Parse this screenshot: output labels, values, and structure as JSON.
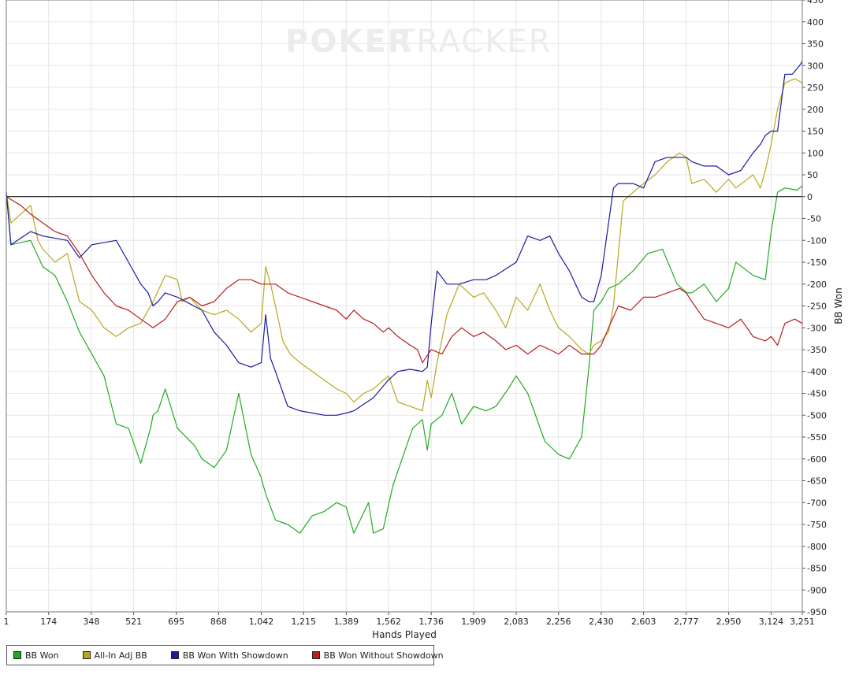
{
  "watermark": {
    "left": "POKER",
    "right": "TRACKER"
  },
  "chart_data": {
    "type": "line",
    "xlabel": "Hands Played",
    "ylabel": "BB Won",
    "xlim": [
      1,
      3251
    ],
    "ylim": [
      -950,
      450
    ],
    "x_ticks": [
      "1",
      "174",
      "348",
      "521",
      "695",
      "868",
      "1,042",
      "1,215",
      "1,389",
      "1,562",
      "1,736",
      "1,909",
      "2,083",
      "2,256",
      "2,430",
      "2,603",
      "2,777",
      "2,950",
      "3,124",
      "3,251"
    ],
    "y_ticks": [
      450,
      400,
      350,
      300,
      250,
      200,
      150,
      100,
      50,
      0,
      -50,
      -100,
      -150,
      -200,
      -250,
      -300,
      -350,
      -400,
      -450,
      -500,
      -550,
      -600,
      -650,
      -700,
      -750,
      -800,
      -850,
      -900,
      -950
    ],
    "grid": true,
    "legend_position": "bottom-left",
    "series": [
      {
        "name": "BB Won",
        "color": "#22aa22",
        "x": [
          1,
          20,
          100,
          150,
          200,
          250,
          300,
          350,
          400,
          450,
          500,
          550,
          590,
          600,
          620,
          650,
          700,
          770,
          800,
          850,
          900,
          950,
          1000,
          1040,
          1060,
          1100,
          1150,
          1200,
          1250,
          1300,
          1350,
          1389,
          1420,
          1480,
          1500,
          1540,
          1580,
          1660,
          1700,
          1720,
          1736,
          1780,
          1820,
          1860,
          1909,
          1960,
          2000,
          2050,
          2083,
          2130,
          2200,
          2256,
          2300,
          2350,
          2380,
          2400,
          2430,
          2460,
          2500,
          2560,
          2620,
          2680,
          2740,
          2780,
          2800,
          2850,
          2900,
          2950,
          2980,
          3050,
          3100,
          3124,
          3150,
          3180,
          3230,
          3251
        ],
        "values": [
          10,
          -110,
          -100,
          -160,
          -180,
          -240,
          -310,
          -360,
          -410,
          -520,
          -530,
          -610,
          -530,
          -500,
          -490,
          -440,
          -530,
          -570,
          -600,
          -620,
          -580,
          -450,
          -590,
          -640,
          -680,
          -740,
          -750,
          -770,
          -730,
          -720,
          -700,
          -710,
          -770,
          -700,
          -770,
          -760,
          -660,
          -530,
          -510,
          -580,
          -520,
          -500,
          -450,
          -520,
          -480,
          -490,
          -480,
          -440,
          -410,
          -450,
          -560,
          -590,
          -600,
          -550,
          -390,
          -260,
          -240,
          -210,
          -200,
          -170,
          -130,
          -120,
          -200,
          -220,
          -220,
          -200,
          -240,
          -210,
          -150,
          -180,
          -190,
          -80,
          10,
          20,
          15,
          25
        ]
      },
      {
        "name": "All-In Adj BB",
        "color": "#b8a81e",
        "x": [
          1,
          20,
          60,
          100,
          130,
          150,
          200,
          250,
          300,
          350,
          400,
          450,
          500,
          550,
          600,
          650,
          700,
          720,
          750,
          800,
          850,
          900,
          950,
          1000,
          1042,
          1060,
          1080,
          1100,
          1130,
          1160,
          1200,
          1250,
          1300,
          1350,
          1389,
          1420,
          1460,
          1500,
          1540,
          1562,
          1600,
          1650,
          1700,
          1720,
          1736,
          1760,
          1800,
          1850,
          1909,
          1950,
          2000,
          2040,
          2083,
          2130,
          2180,
          2220,
          2256,
          2300,
          2350,
          2380,
          2400,
          2430,
          2460,
          2480,
          2520,
          2560,
          2603,
          2650,
          2700,
          2750,
          2777,
          2800,
          2850,
          2900,
          2950,
          2980,
          3050,
          3080,
          3100,
          3124,
          3150,
          3180,
          3220,
          3251
        ],
        "values": [
          10,
          -60,
          -40,
          -20,
          -100,
          -120,
          -150,
          -130,
          -240,
          -260,
          -300,
          -320,
          -300,
          -290,
          -240,
          -180,
          -190,
          -240,
          -230,
          -260,
          -270,
          -260,
          -280,
          -310,
          -290,
          -160,
          -200,
          -250,
          -330,
          -360,
          -380,
          -400,
          -420,
          -440,
          -450,
          -470,
          -450,
          -440,
          -420,
          -410,
          -470,
          -480,
          -490,
          -420,
          -460,
          -380,
          -270,
          -200,
          -230,
          -220,
          -260,
          -300,
          -230,
          -260,
          -200,
          -260,
          -300,
          -320,
          -350,
          -360,
          -340,
          -330,
          -310,
          -250,
          -10,
          10,
          30,
          50,
          80,
          100,
          90,
          30,
          40,
          10,
          40,
          20,
          50,
          20,
          60,
          120,
          200,
          260,
          270,
          260
        ]
      },
      {
        "name": "BB Won With Showdown",
        "color": "#1a1aa0",
        "x": [
          1,
          20,
          100,
          150,
          250,
          300,
          350,
          450,
          500,
          550,
          580,
          600,
          620,
          650,
          700,
          800,
          850,
          900,
          950,
          1000,
          1042,
          1060,
          1080,
          1100,
          1150,
          1200,
          1250,
          1300,
          1350,
          1389,
          1420,
          1500,
          1560,
          1600,
          1650,
          1700,
          1720,
          1736,
          1760,
          1800,
          1850,
          1909,
          1960,
          2000,
          2083,
          2130,
          2180,
          2220,
          2256,
          2300,
          2350,
          2380,
          2400,
          2430,
          2480,
          2500,
          2530,
          2560,
          2603,
          2650,
          2700,
          2777,
          2800,
          2850,
          2900,
          2950,
          3000,
          3050,
          3080,
          3100,
          3124,
          3150,
          3180,
          3210,
          3240,
          3251
        ],
        "values": [
          10,
          -110,
          -80,
          -90,
          -100,
          -140,
          -110,
          -100,
          -150,
          -200,
          -220,
          -250,
          -240,
          -220,
          -230,
          -260,
          -310,
          -340,
          -380,
          -390,
          -380,
          -270,
          -370,
          -400,
          -480,
          -490,
          -495,
          -500,
          -500,
          -495,
          -490,
          -460,
          -420,
          -400,
          -395,
          -400,
          -390,
          -290,
          -170,
          -200,
          -200,
          -190,
          -190,
          -180,
          -150,
          -90,
          -100,
          -90,
          -130,
          -170,
          -230,
          -240,
          -240,
          -180,
          20,
          30,
          30,
          30,
          20,
          80,
          90,
          90,
          80,
          70,
          70,
          50,
          60,
          100,
          120,
          140,
          150,
          150,
          280,
          280,
          300,
          310
        ]
      },
      {
        "name": "BB Won Without Showdown",
        "color": "#b81e1e",
        "x": [
          1,
          30,
          60,
          100,
          150,
          200,
          250,
          300,
          350,
          400,
          450,
          500,
          550,
          600,
          650,
          700,
          750,
          800,
          850,
          900,
          950,
          1000,
          1042,
          1100,
          1150,
          1200,
          1250,
          1300,
          1350,
          1389,
          1420,
          1460,
          1500,
          1540,
          1562,
          1600,
          1650,
          1680,
          1700,
          1736,
          1780,
          1820,
          1860,
          1909,
          1950,
          2000,
          2040,
          2083,
          2130,
          2180,
          2220,
          2256,
          2300,
          2350,
          2400,
          2430,
          2460,
          2500,
          2550,
          2603,
          2650,
          2700,
          2750,
          2777,
          2800,
          2850,
          2900,
          2950,
          3000,
          3050,
          3100,
          3124,
          3150,
          3180,
          3220,
          3251
        ],
        "values": [
          0,
          -10,
          -20,
          -40,
          -60,
          -80,
          -90,
          -130,
          -180,
          -220,
          -250,
          -260,
          -280,
          -300,
          -280,
          -240,
          -230,
          -250,
          -240,
          -210,
          -190,
          -190,
          -200,
          -200,
          -220,
          -230,
          -240,
          -250,
          -260,
          -280,
          -260,
          -280,
          -290,
          -310,
          -300,
          -320,
          -340,
          -350,
          -380,
          -350,
          -360,
          -320,
          -300,
          -320,
          -310,
          -330,
          -350,
          -340,
          -360,
          -340,
          -350,
          -360,
          -340,
          -360,
          -360,
          -340,
          -300,
          -250,
          -260,
          -230,
          -230,
          -220,
          -210,
          -220,
          -240,
          -280,
          -290,
          -300,
          -280,
          -320,
          -330,
          -320,
          -340,
          -290,
          -280,
          -290
        ]
      }
    ]
  }
}
